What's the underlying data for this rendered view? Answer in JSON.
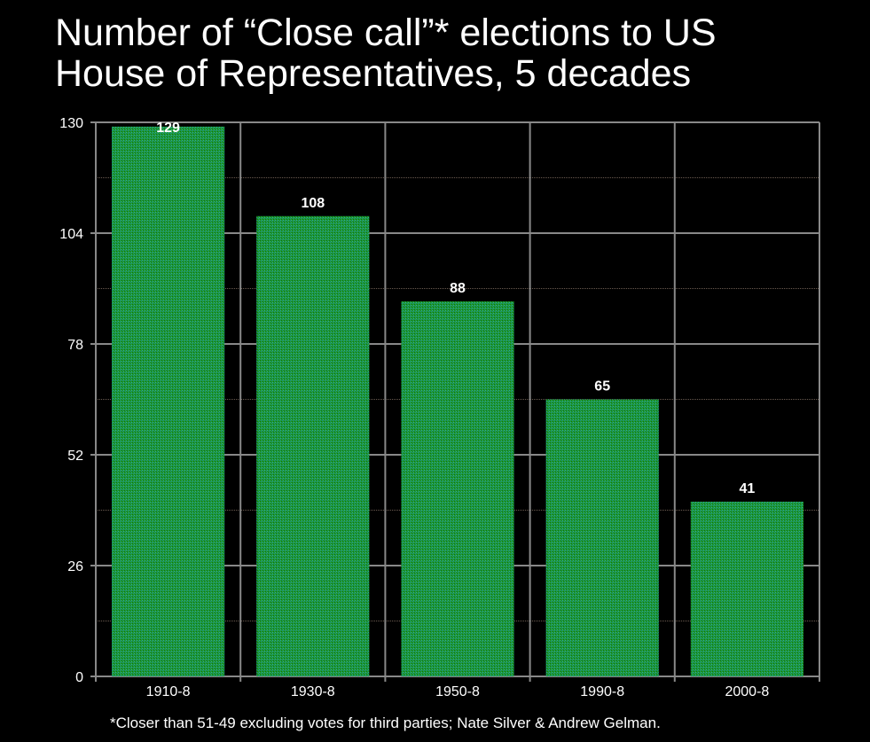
{
  "chart_data": {
    "type": "bar",
    "title_lines": [
      "Number of “Close call”* elections to US",
      "House of Representatives, 5 decades"
    ],
    "categories": [
      "1910-8",
      "1930-8",
      "1950-8",
      "1990-8",
      "2000-8"
    ],
    "values": [
      129,
      108,
      88,
      65,
      41
    ],
    "ylim": [
      0,
      130
    ],
    "yticks": [
      0,
      26,
      52,
      78,
      104,
      130
    ],
    "grid": true,
    "xlabel": "",
    "ylabel": "",
    "footnote": "*Closer than 51-49 excluding votes for third parties;  Nate Silver & Andrew Gelman.",
    "bar_color": "#1f9e2c"
  }
}
